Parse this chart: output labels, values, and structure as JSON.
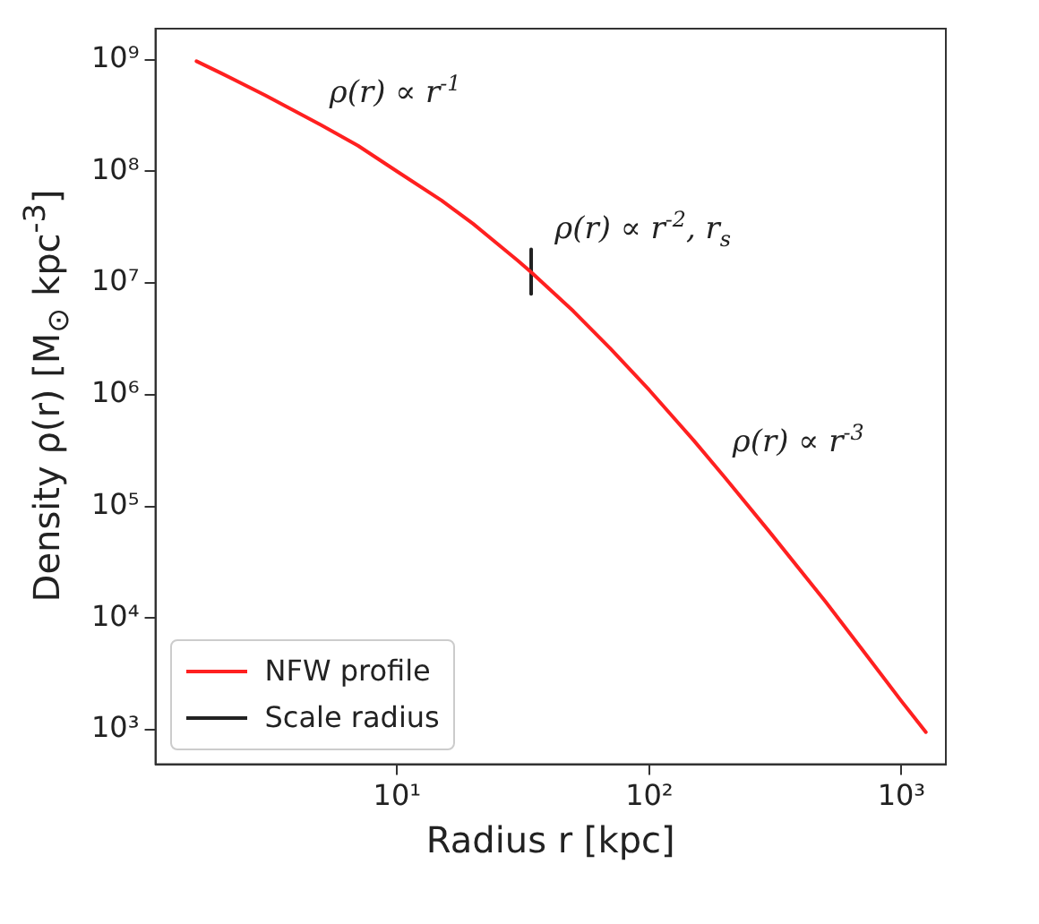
{
  "chart_data": {
    "type": "line",
    "xlabel": "Radius r [kpc]",
    "ylabel": "Density ρ(r) [M$_{⊙}$ kpc$^{-3}$]",
    "log": "xy",
    "xlim": [
      1.1,
      1500
    ],
    "ylim": [
      490,
      1900000000
    ],
    "xticks": [
      {
        "value": 10,
        "label": "10¹"
      },
      {
        "value": 100,
        "label": "10²"
      },
      {
        "value": 1000,
        "label": "10³"
      }
    ],
    "yticks": [
      {
        "value": 1000,
        "label": "10³"
      },
      {
        "value": 10000,
        "label": "10⁴"
      },
      {
        "value": 100000,
        "label": "10⁵"
      },
      {
        "value": 1000000,
        "label": "10⁶"
      },
      {
        "value": 10000000,
        "label": "10⁷"
      },
      {
        "value": 100000000,
        "label": "10⁸"
      },
      {
        "value": 1000000000,
        "label": "10⁹"
      }
    ],
    "series": [
      {
        "name": "NFW profile",
        "color": "#ff2020",
        "x": [
          1.6,
          2,
          3,
          5,
          7,
          10,
          15,
          20,
          30,
          34,
          50,
          70,
          100,
          150,
          200,
          300,
          500,
          700,
          1000,
          1250
        ],
        "values": [
          970000000,
          760000000,
          480000000,
          260000000,
          170000000,
          100000000,
          55000000,
          34000000,
          16000000,
          12500000,
          5600000,
          2600000,
          1100000,
          390000,
          180000,
          59000,
          14000,
          5200,
          1800,
          950
        ]
      },
      {
        "name": "Scale radius",
        "color": "#222222",
        "x": [
          34,
          34
        ],
        "values": [
          8000000,
          20000000
        ]
      }
    ],
    "legend": "bottom left",
    "annotations": [
      "ρ(r) ∝ r$^{-1}$",
      "ρ(r) ∝ r$^{-2}$, r$_{s}$",
      "ρ(r) ∝ r$^{-3}$"
    ]
  }
}
